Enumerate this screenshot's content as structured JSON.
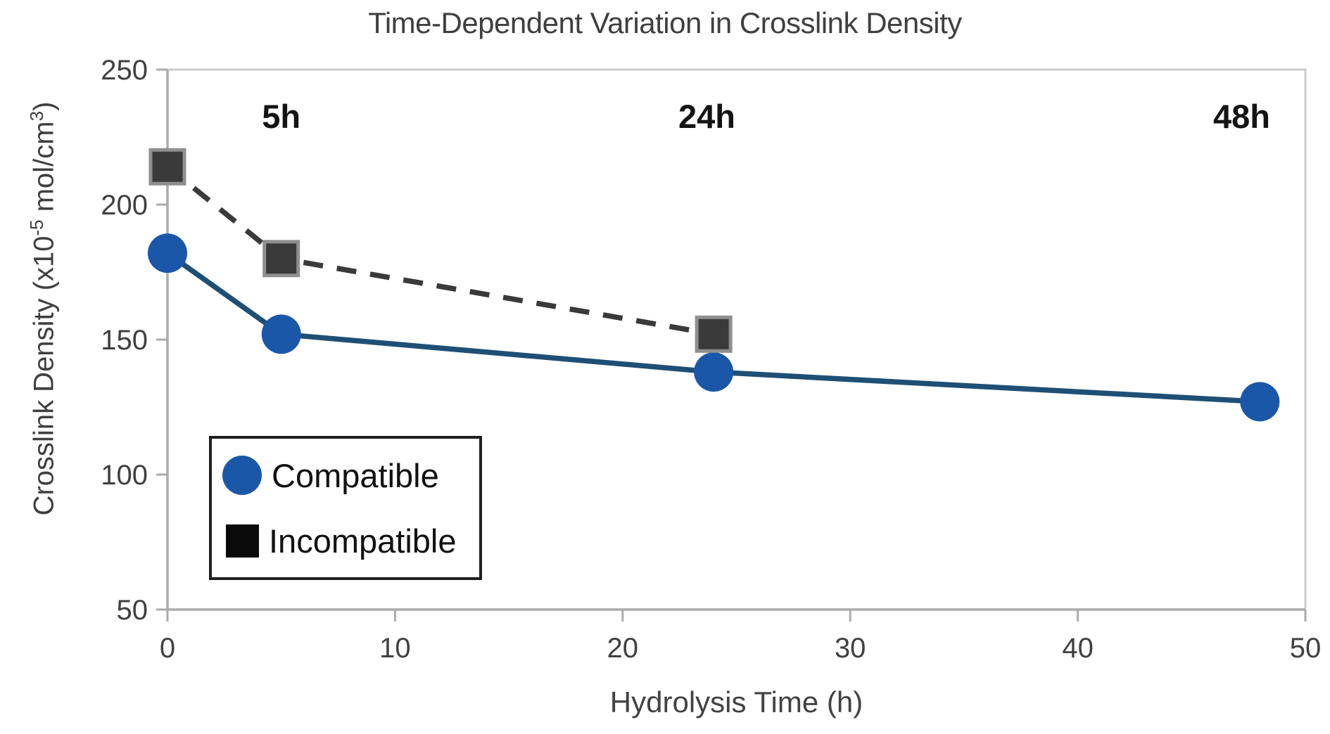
{
  "page": {
    "background": "#ffffff"
  },
  "chart_data": {
    "type": "line",
    "title": "Time-Dependent Variation in Crosslink Density",
    "xlabel": "Hydrolysis Time (h)",
    "ylabel": "Crosslink Density (x10-5 mol/cm3)",
    "ylabel_parts": {
      "prefix": "Crosslink Density (x10",
      "sup1": "-5",
      "mid": " mol/cm",
      "sup2": "3",
      "suffix": ")"
    },
    "xlim": [
      0,
      50
    ],
    "ylim": [
      50,
      250
    ],
    "x_ticks": [
      0,
      10,
      20,
      30,
      40,
      50
    ],
    "y_ticks": [
      50,
      100,
      150,
      200,
      250
    ],
    "grid": false,
    "legend_position": "inside-lower-left",
    "series": [
      {
        "name": "Compatible",
        "marker": "circle",
        "line_style": "solid",
        "marker_color": "#1b57a9",
        "line_color": "#1e4f74",
        "x": [
          0,
          5,
          24,
          48
        ],
        "values": [
          182,
          152,
          138,
          127
        ]
      },
      {
        "name": "Incompatible",
        "marker": "square",
        "line_style": "dashed",
        "marker_color": "#3a3a3a",
        "marker_border_color": "#8f8f8f",
        "line_color": "#3a3a3a",
        "x": [
          0,
          5,
          24
        ],
        "values": [
          214,
          180,
          152
        ]
      }
    ],
    "annotations": [
      {
        "label": "5h",
        "x": 5
      },
      {
        "label": "24h",
        "x": 23.7
      },
      {
        "label": "48h",
        "x": 47.2
      }
    ],
    "axis_color": "#ababab",
    "frame_color": "#cbcbcb",
    "tick_label_color": "#404040"
  },
  "legend": {
    "items": [
      {
        "label": "Compatible",
        "swatch_color": "#1b57a9"
      },
      {
        "label": "Incompatible",
        "swatch_color": "#0a0a0a"
      }
    ]
  }
}
